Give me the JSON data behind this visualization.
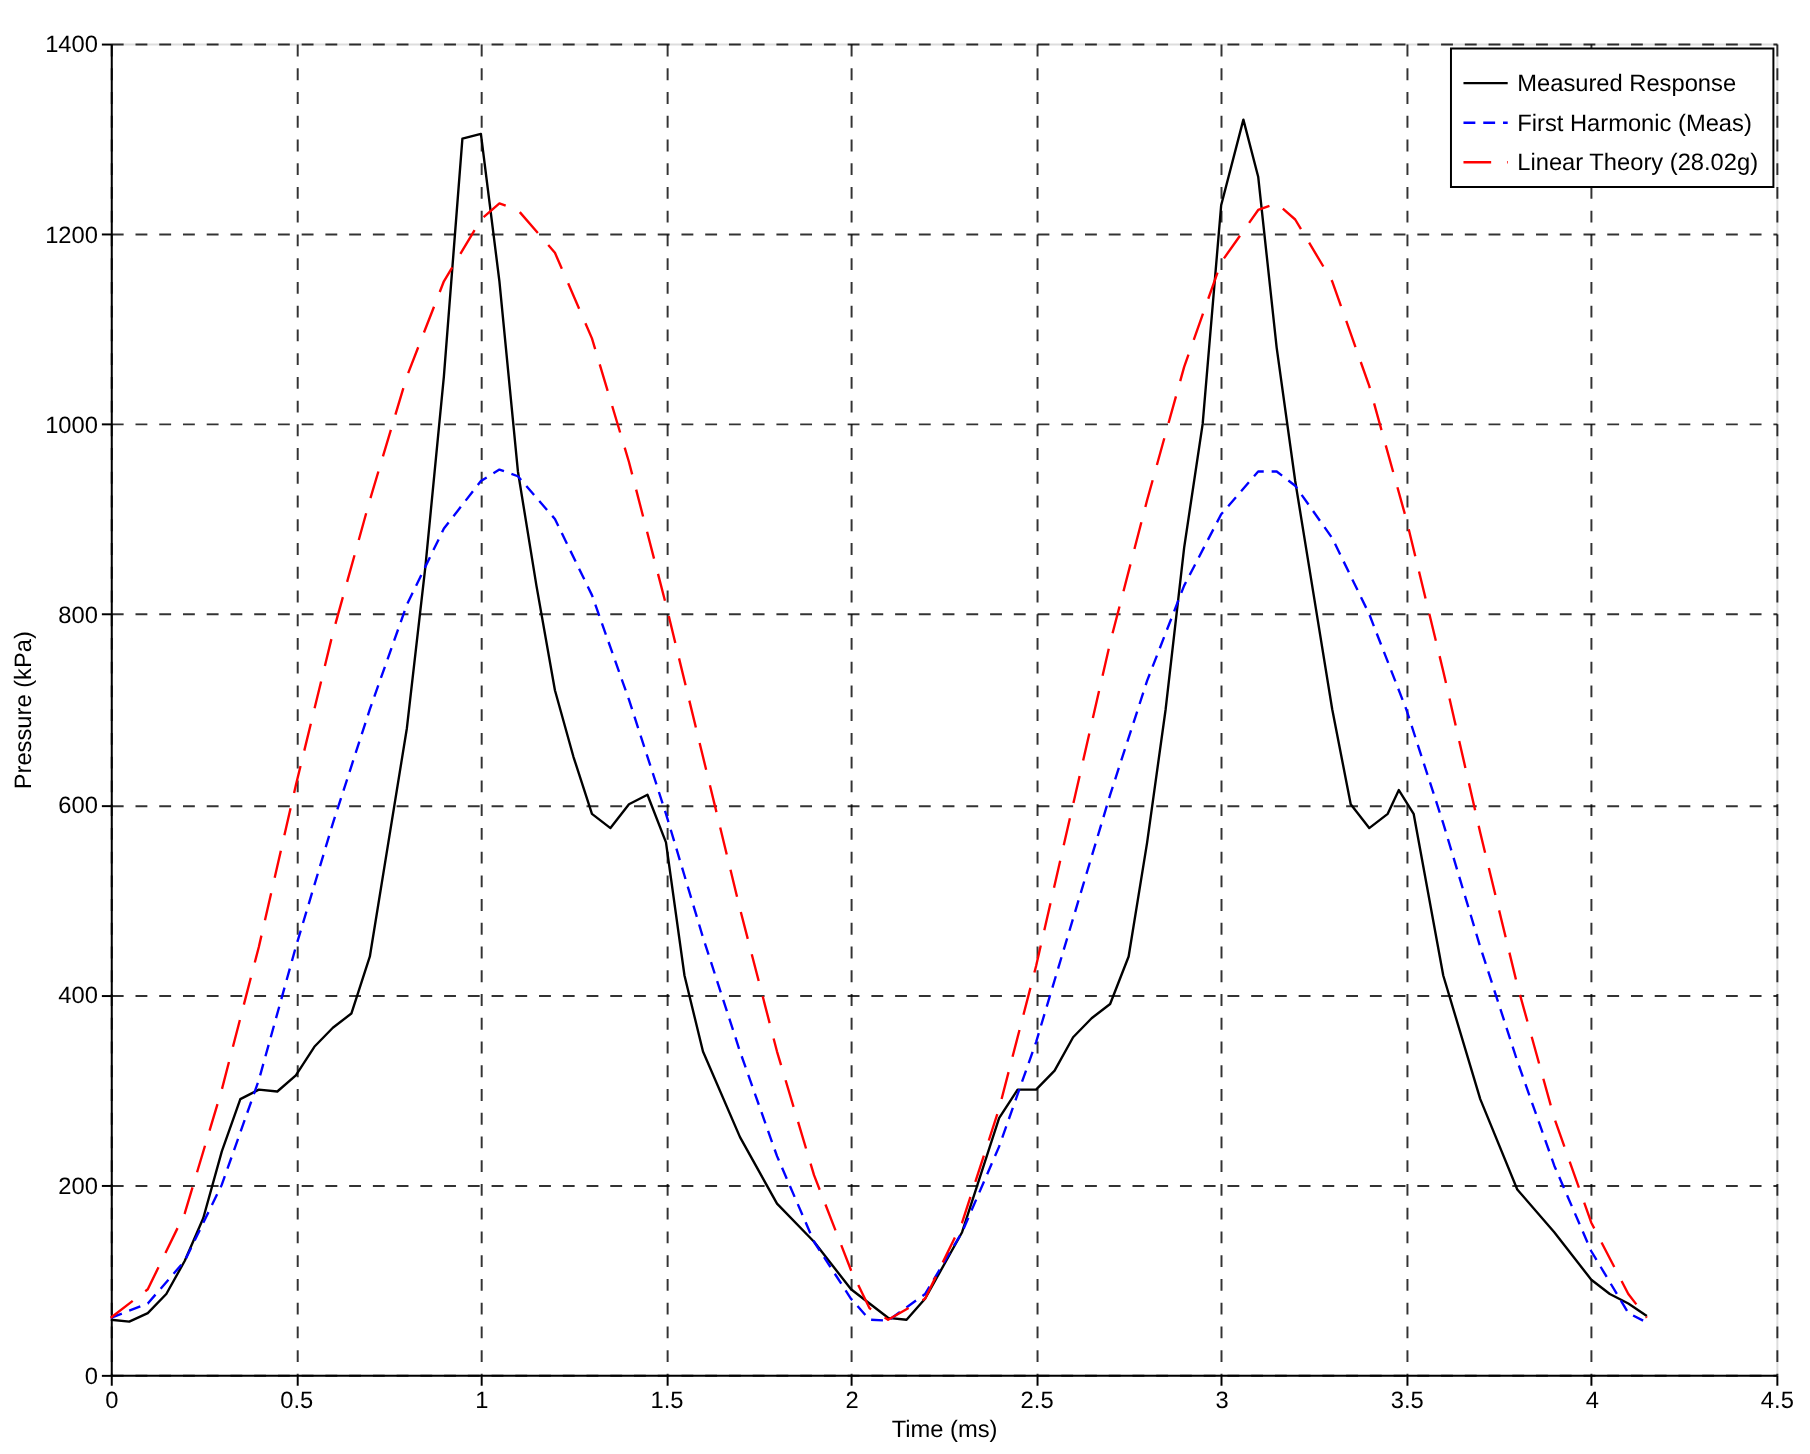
{
  "chart_data": {
    "type": "line",
    "xlabel": "Time (ms)",
    "ylabel": "Pressure (kPa)",
    "xlim": [
      0,
      4.5
    ],
    "xticks": [
      0,
      0.5,
      1,
      1.5,
      2,
      2.5,
      3,
      3.5,
      4,
      4.5
    ],
    "ylim": [
      0,
      1400
    ],
    "yticks": [
      0,
      200,
      400,
      600,
      800,
      1000,
      1200,
      1400
    ],
    "grid": true,
    "legend": "top right",
    "marker": "none",
    "series": [
      {
        "name": "Measured Response",
        "color": "#000000",
        "line_style": "solid",
        "x": [
          0,
          0.05,
          0.1,
          0.15,
          0.2,
          0.25,
          0.3,
          0.35,
          0.4,
          0.45,
          0.5,
          0.55,
          0.6,
          0.65,
          0.7,
          0.75,
          0.8,
          0.85,
          0.9,
          0.95,
          1.0,
          1.05,
          1.1,
          1.15,
          1.2,
          1.25,
          1.3,
          1.35,
          1.4,
          1.45,
          1.5,
          1.55,
          1.6,
          1.7,
          1.8,
          1.9,
          2.0,
          2.05,
          2.1,
          2.15,
          2.2,
          2.3,
          2.4,
          2.45,
          2.5,
          2.55,
          2.6,
          2.65,
          2.7,
          2.75,
          2.8,
          2.85,
          2.9,
          2.95,
          3.0,
          3.06,
          3.1,
          3.15,
          3.2,
          3.25,
          3.3,
          3.35,
          3.4,
          3.45,
          3.48,
          3.52,
          3.6,
          3.7,
          3.8,
          3.9,
          4.0,
          4.05,
          4.1,
          4.15
        ],
        "values": [
          58,
          56,
          65,
          85,
          120,
          165,
          235,
          290,
          300,
          298,
          315,
          345,
          365,
          380,
          440,
          560,
          680,
          850,
          1050,
          1300,
          1305,
          1150,
          950,
          830,
          720,
          650,
          590,
          575,
          600,
          610,
          560,
          420,
          340,
          250,
          180,
          140,
          90,
          75,
          60,
          58,
          80,
          150,
          270,
          300,
          300,
          320,
          355,
          375,
          390,
          440,
          560,
          700,
          870,
          1000,
          1230,
          1320,
          1260,
          1080,
          940,
          820,
          700,
          600,
          575,
          590,
          615,
          590,
          420,
          290,
          195,
          150,
          100,
          85,
          75,
          62
        ]
      },
      {
        "name": "First Harmonic (Meas)",
        "color": "#0000ff",
        "line_style": "dashed",
        "x": [
          0,
          0.1,
          0.2,
          0.3,
          0.4,
          0.5,
          0.6,
          0.7,
          0.8,
          0.9,
          1.0,
          1.05,
          1.1,
          1.2,
          1.3,
          1.4,
          1.5,
          1.6,
          1.7,
          1.8,
          1.9,
          2.0,
          2.05,
          2.1,
          2.2,
          2.3,
          2.4,
          2.5,
          2.6,
          2.7,
          2.8,
          2.9,
          3.0,
          3.1,
          3.15,
          3.2,
          3.3,
          3.4,
          3.5,
          3.6,
          3.7,
          3.8,
          3.9,
          4.0,
          4.1,
          4.14
        ],
        "values": [
          60,
          75,
          120,
          200,
          310,
          450,
          580,
          700,
          810,
          890,
          940,
          952,
          945,
          900,
          820,
          710,
          590,
          460,
          340,
          230,
          140,
          80,
          58,
          57,
          85,
          150,
          240,
          350,
          480,
          610,
          730,
          830,
          905,
          950,
          950,
          935,
          880,
          800,
          700,
          580,
          450,
          330,
          220,
          130,
          65,
          57
        ]
      },
      {
        "name": "Linear Theory (28.02g)",
        "color": "#ff0000",
        "line_style": "dashed",
        "x": [
          0,
          0.1,
          0.2,
          0.3,
          0.4,
          0.5,
          0.6,
          0.7,
          0.8,
          0.9,
          1.0,
          1.05,
          1.1,
          1.2,
          1.3,
          1.4,
          1.5,
          1.6,
          1.7,
          1.8,
          1.9,
          2.0,
          2.05,
          2.1,
          2.2,
          2.3,
          2.4,
          2.5,
          2.6,
          2.7,
          2.8,
          2.9,
          3.0,
          3.1,
          3.15,
          3.2,
          3.3,
          3.4,
          3.5,
          3.6,
          3.7,
          3.8,
          3.9,
          4.0,
          4.1,
          4.15
        ],
        "values": [
          60,
          90,
          170,
          300,
          450,
          620,
          780,
          920,
          1050,
          1150,
          1215,
          1232,
          1225,
          1180,
          1090,
          960,
          810,
          650,
          490,
          340,
          210,
          110,
          70,
          58,
          80,
          160,
          280,
          430,
          600,
          770,
          920,
          1060,
          1170,
          1225,
          1232,
          1215,
          1150,
          1040,
          900,
          740,
          570,
          410,
          270,
          160,
          85,
          60
        ]
      }
    ]
  }
}
